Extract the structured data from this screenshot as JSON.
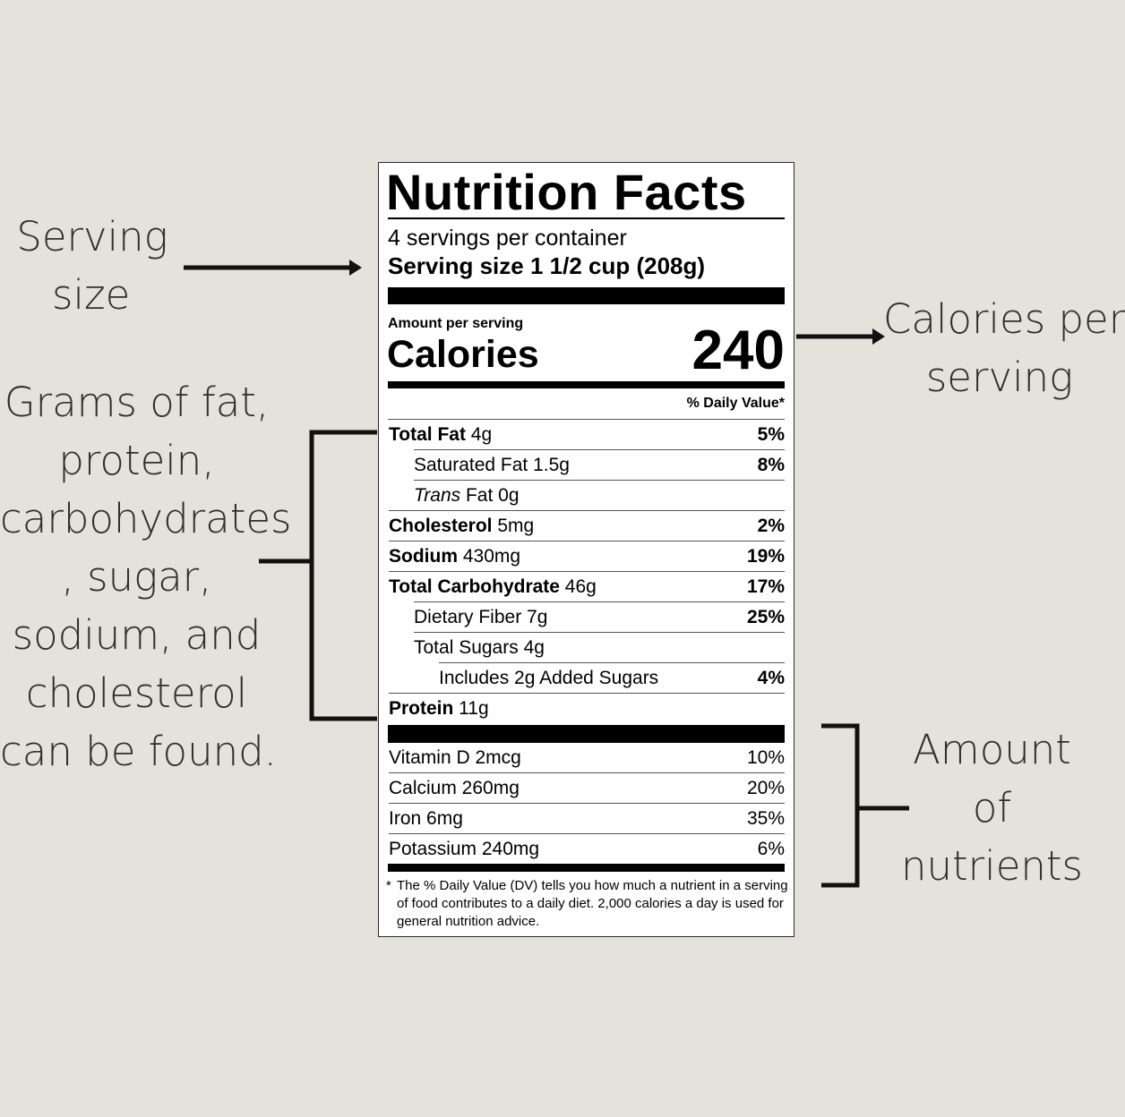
{
  "callouts": {
    "serving": [
      "Serving",
      "size"
    ],
    "calories": [
      "Calories per",
      "serving"
    ],
    "grams": [
      "Grams of fat,",
      "protein,",
      "carbohydrates",
      ", sugar,",
      "sodium, and",
      "cholesterol",
      "can be found."
    ],
    "nutrients": [
      "Amount",
      "of",
      "nutrients"
    ]
  },
  "label": {
    "title": "Nutrition Facts",
    "servings_per_container": "4 servings per container",
    "serving_size_label": "Serving size",
    "serving_size_value": "1 1/2 cup (208g)",
    "amount_per_serving": "Amount per serving",
    "calories_label": "Calories",
    "calories_value": "240",
    "daily_value_header": "% Daily Value*",
    "nutrients": [
      {
        "bold": "Total Fat",
        "rest": " 4g",
        "dv": "5%"
      },
      {
        "bold": "",
        "rest": "Saturated Fat 1.5g",
        "dv": "8%"
      },
      {
        "italic": "Trans",
        "rest": " Fat 0g",
        "dv": ""
      },
      {
        "bold": "Cholesterol",
        "rest": " 5mg",
        "dv": "2%"
      },
      {
        "bold": "Sodium",
        "rest": " 430mg",
        "dv": "19%"
      },
      {
        "bold": "Total Carbohydrate",
        "rest": " 46g",
        "dv": "17%"
      },
      {
        "bold": "",
        "rest": "Dietary Fiber 7g",
        "dv": "25%"
      },
      {
        "bold": "",
        "rest": "Total Sugars 4g",
        "dv": ""
      },
      {
        "bold": "",
        "rest": "Includes 2g Added Sugars",
        "dv": "4%"
      },
      {
        "bold": "Protein",
        "rest": " 11g",
        "dv": ""
      }
    ],
    "vitamins": [
      {
        "name": "Vitamin D 2mcg",
        "dv": "10%"
      },
      {
        "name": "Calcium 260mg",
        "dv": "20%"
      },
      {
        "name": "Iron 6mg",
        "dv": "35%"
      },
      {
        "name": "Potassium 240mg",
        "dv": "6%"
      }
    ],
    "footnote_star": "*",
    "footnote": "The % Daily Value (DV) tells you how much a nutrient in a serving of food contributes to a daily diet. 2,000 calories a day is used for general nutrition advice."
  }
}
